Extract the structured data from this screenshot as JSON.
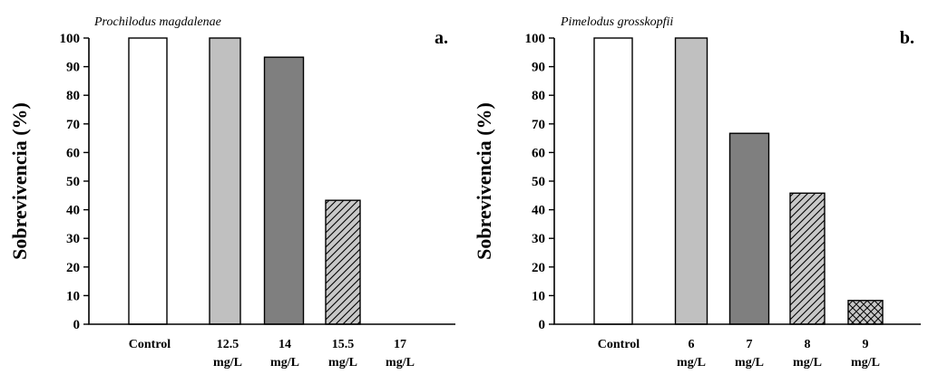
{
  "chart_data": [
    {
      "type": "bar",
      "panel": "a.",
      "title": "Prochilodus magdalenae",
      "ylabel": "Sobrevivencia (%)",
      "xlabel": "",
      "ylim": [
        0,
        100
      ],
      "yticks": [
        "0",
        "10",
        "20",
        "30",
        "40",
        "50",
        "60",
        "70",
        "80",
        "90",
        "100"
      ],
      "categories": [
        [
          "Control"
        ],
        [
          "12.5",
          "mg/L"
        ],
        [
          "14",
          "mg/L"
        ],
        [
          "15.5",
          "mg/L"
        ],
        [
          "17",
          "mg/L"
        ]
      ],
      "values": [
        100,
        100,
        93.3,
        43.3,
        0
      ],
      "fills": [
        "white",
        "light-gray",
        "dark-gray",
        "diagonal-hatch",
        "none"
      ]
    },
    {
      "type": "bar",
      "panel": "b.",
      "title": "Pimelodus grosskopfii",
      "ylabel": "Sobrevivencia (%)",
      "xlabel": "",
      "ylim": [
        0,
        100
      ],
      "yticks": [
        "0",
        "10",
        "20",
        "30",
        "40",
        "50",
        "60",
        "70",
        "80",
        "90",
        "100"
      ],
      "categories": [
        [
          "Control"
        ],
        [
          "6",
          "mg/L"
        ],
        [
          "7",
          "mg/L"
        ],
        [
          "8",
          "mg/L"
        ],
        [
          "9",
          "mg/L"
        ]
      ],
      "values": [
        100,
        100,
        66.7,
        45.8,
        8.3
      ],
      "fills": [
        "white",
        "light-gray",
        "dark-gray",
        "diagonal-hatch",
        "cross-hatch"
      ]
    }
  ],
  "colors": {
    "white": "#ffffff",
    "light-gray": "#c0c0c0",
    "dark-gray": "#7f7f7f",
    "hatch-bg": "#c8c8c8",
    "ink": "#000000"
  }
}
